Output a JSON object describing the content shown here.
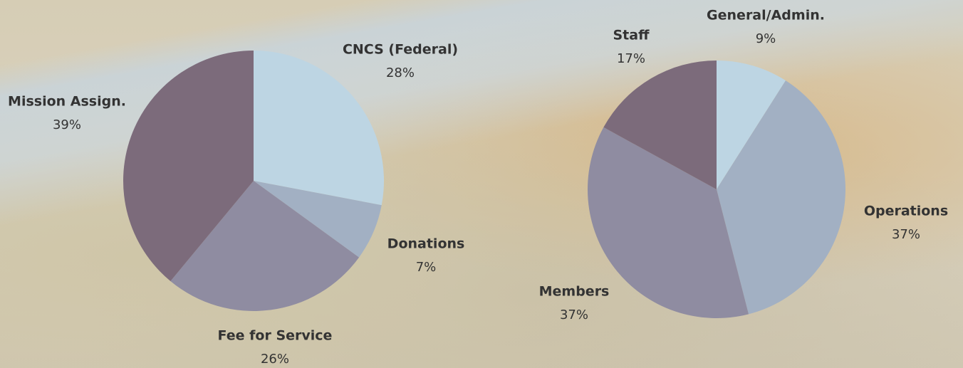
{
  "chart_data": [
    {
      "type": "pie",
      "categories": [
        "CNCS (Federal)",
        "Donations",
        "Fee for Service",
        "Mission Assign."
      ],
      "values": [
        28,
        7,
        26,
        39
      ],
      "value_labels": [
        "28%",
        "7%",
        "26%",
        "39%"
      ],
      "colors": [
        "#bdd5e3",
        "#a2b0c3",
        "#8f8ca1",
        "#7c6b7b"
      ]
    },
    {
      "type": "pie",
      "categories": [
        "General/Admin.",
        "Operations",
        "Members",
        "Staff"
      ],
      "values": [
        9,
        37,
        37,
        17
      ],
      "value_labels": [
        "9%",
        "37%",
        "37%",
        "17%"
      ],
      "colors": [
        "#bdd5e3",
        "#a2b0c3",
        "#8f8ca1",
        "#7c6b7b"
      ]
    }
  ]
}
